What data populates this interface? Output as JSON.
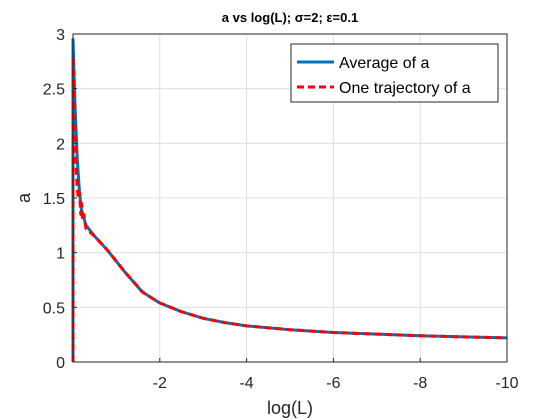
{
  "chart_data": {
    "type": "line",
    "title": "a vs log(L); σ=2; ε=0.1",
    "xlabel": "log(L)",
    "ylabel": "a",
    "xlim": [
      0,
      -10
    ],
    "ylim": [
      0,
      3
    ],
    "x_reversed": true,
    "grid": true,
    "legend_position": "top-right",
    "x_ticks": [
      0,
      -2,
      -4,
      -6,
      -8,
      -10
    ],
    "x_tick_labels": [
      "",
      "-2",
      "-4",
      "-6",
      "-8",
      "-10"
    ],
    "y_ticks": [
      0,
      0.5,
      1,
      1.5,
      2,
      2.5,
      3
    ],
    "y_tick_labels": [
      "0",
      "0.5",
      "1",
      "1.5",
      "2",
      "2.5",
      "3"
    ],
    "series": [
      {
        "name": "Average of a",
        "color": "#0072BD",
        "style": "solid",
        "x": [
          0,
          0,
          -0.05,
          -0.1,
          -0.15,
          -0.2,
          -0.3,
          -0.5,
          -0.8,
          -1.2,
          -1.6,
          -2.0,
          -2.5,
          -3.0,
          -3.5,
          -4.0,
          -5.0,
          -6.0,
          -7.0,
          -8.0,
          -9.0,
          -10.0
        ],
        "y": [
          0,
          2.95,
          2.3,
          1.85,
          1.55,
          1.38,
          1.25,
          1.15,
          1.02,
          0.82,
          0.64,
          0.54,
          0.46,
          0.4,
          0.36,
          0.33,
          0.295,
          0.27,
          0.255,
          0.24,
          0.23,
          0.22
        ]
      },
      {
        "name": "One trajectory of a",
        "color": "#FF0000",
        "style": "dashed",
        "x": [
          0,
          0,
          -0.04,
          -0.08,
          -0.12,
          -0.15,
          -0.18,
          -0.2,
          -0.22,
          -0.25,
          -0.3,
          -0.5,
          -0.8,
          -1.2,
          -1.6,
          -2.0,
          -2.5,
          -3.0,
          -3.5,
          -4.0,
          -5.0,
          -6.0,
          -7.0,
          -8.0,
          -9.0,
          -10.0
        ],
        "y": [
          0,
          2.8,
          2.2,
          1.7,
          1.5,
          1.55,
          1.35,
          1.45,
          1.3,
          1.35,
          1.22,
          1.15,
          1.02,
          0.82,
          0.64,
          0.54,
          0.46,
          0.4,
          0.36,
          0.33,
          0.295,
          0.27,
          0.255,
          0.24,
          0.23,
          0.22
        ]
      }
    ]
  }
}
